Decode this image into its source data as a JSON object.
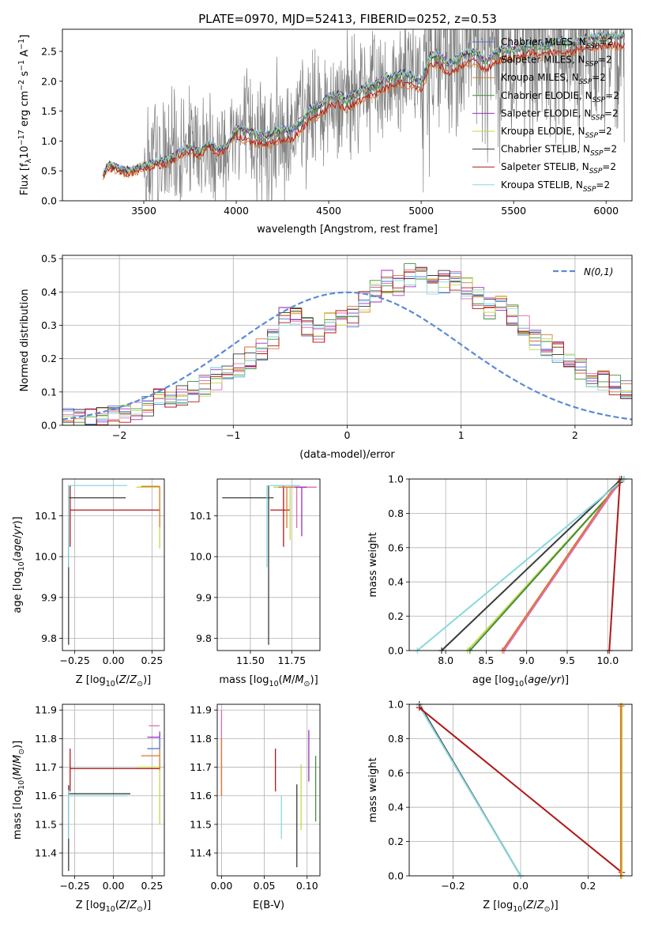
{
  "figure": {
    "title": "PLATE=0970, MJD=52413, FIBERID=0252, z=0.53"
  },
  "colors": {
    "chabrier_miles": "#4c72d8",
    "salpeter_miles": "#e06ab0",
    "kroupa_miles": "#d97a2c",
    "chabrier_elodie": "#3f8f3f",
    "salpeter_elodie": "#9b2fbf",
    "kroupa_elodie": "#c9d64a",
    "chabrier_stelib": "#3a3a3a",
    "salpeter_stelib": "#b01818",
    "kroupa_stelib": "#88d8e0",
    "data": "#808080",
    "normal": "#5b8ad6"
  },
  "chart_data": [
    {
      "id": "spectrum",
      "type": "line",
      "xlabel": "wavelength [Angstrom, rest frame]",
      "ylabel": "Flux [f_λ 10^-17 erg cm^-2 s^-1 A^-1]",
      "xlim": [
        3060,
        6140
      ],
      "ylim": [
        0,
        2.87
      ],
      "xticks": [
        3500,
        4000,
        4500,
        5000,
        5500,
        6000
      ],
      "yticks": [
        0.0,
        0.5,
        1.0,
        1.5,
        2.0,
        2.5
      ],
      "legend_position": "top-right",
      "legend": [
        {
          "label": "Chabrier MILES, N",
          "sub": "SSP",
          "suffix": "=2",
          "color": "#4c72d8"
        },
        {
          "label": "Salpeter MILES, N",
          "sub": "SSP",
          "suffix": "=2",
          "color": "#e06ab0"
        },
        {
          "label": "Kroupa MILES, N",
          "sub": "SSP",
          "suffix": "=2",
          "color": "#d97a2c"
        },
        {
          "label": "Chabrier ELODIE, N",
          "sub": "SSP",
          "suffix": "=2",
          "color": "#3f8f3f"
        },
        {
          "label": "Salpeter ELODIE, N",
          "sub": "SSP",
          "suffix": "=2",
          "color": "#9b2fbf"
        },
        {
          "label": "Kroupa ELODIE, N",
          "sub": "SSP",
          "suffix": "=2",
          "color": "#c9d64a"
        },
        {
          "label": "Chabrier STELIB, N",
          "sub": "SSP",
          "suffix": "=2",
          "color": "#3a3a3a"
        },
        {
          "label": "Salpeter STELIB, N",
          "sub": "SSP",
          "suffix": "=2",
          "color": "#b01818"
        },
        {
          "label": "Kroupa STELIB, N",
          "sub": "SSP",
          "suffix": "=2",
          "color": "#88d8e0"
        }
      ],
      "model_curve": {
        "x": [
          3280,
          3310,
          3350,
          3400,
          3450,
          3500,
          3550,
          3600,
          3650,
          3700,
          3750,
          3800,
          3850,
          3900,
          3950,
          4000,
          4050,
          4100,
          4150,
          4200,
          4250,
          4300,
          4350,
          4400,
          4450,
          4500,
          4550,
          4600,
          4650,
          4700,
          4750,
          4800,
          4850,
          4900,
          4950,
          5000,
          5050,
          5100,
          5150,
          5200,
          5250,
          5300,
          5350,
          5400,
          5450,
          5500,
          5550,
          5600,
          5650,
          5700,
          5750,
          5800,
          5850,
          5900,
          5950,
          6000
        ],
        "y": [
          0.42,
          0.6,
          0.55,
          0.5,
          0.52,
          0.58,
          0.62,
          0.65,
          0.7,
          0.82,
          0.88,
          0.8,
          0.95,
          0.85,
          0.9,
          1.2,
          1.15,
          1.1,
          1.05,
          1.1,
          1.15,
          1.15,
          1.3,
          1.5,
          1.55,
          1.7,
          1.75,
          1.65,
          1.78,
          1.85,
          1.9,
          2.0,
          2.05,
          2.1,
          2.05,
          1.95,
          2.4,
          2.4,
          2.25,
          2.35,
          2.45,
          2.45,
          2.3,
          2.45,
          2.5,
          2.5,
          2.55,
          2.6,
          2.55,
          2.6,
          2.65,
          2.6,
          2.65,
          2.7,
          2.7,
          2.72
        ]
      },
      "offsets": [
        0.02,
        0.03,
        -0.15,
        0.0,
        0.05,
        0.04,
        0.05,
        -0.12,
        0.06
      ],
      "data_curve": {
        "x": [
          3280,
          3310,
          3350,
          3400,
          3450,
          3500,
          3550,
          3600,
          3650,
          3700,
          3750,
          3800,
          3850,
          3900,
          3950,
          4000,
          4050,
          4100,
          4150,
          4200,
          4250,
          4300,
          4350,
          4400,
          4450,
          4500,
          4550,
          4600,
          4650,
          4700,
          4750,
          4800,
          4850,
          4900,
          4950,
          5000,
          5050,
          5100,
          5150,
          5200,
          5250,
          5300,
          5350,
          5400,
          5450,
          5500,
          5550,
          5600,
          5650,
          5700,
          5750,
          5800,
          5850,
          5900,
          5950,
          6000
        ],
        "y": [
          0.45,
          0.62,
          0.55,
          0.5,
          0.52,
          0.6,
          0.62,
          0.66,
          0.72,
          0.8,
          0.9,
          0.82,
          0.95,
          0.86,
          0.92,
          1.2,
          1.16,
          1.1,
          1.05,
          1.1,
          1.15,
          1.18,
          1.3,
          1.5,
          1.55,
          1.7,
          1.72,
          1.66,
          1.78,
          1.85,
          1.9,
          2.0,
          2.05,
          2.1,
          2.05,
          1.95,
          2.38,
          2.4,
          2.25,
          2.35,
          2.45,
          2.45,
          2.3,
          2.45,
          2.5,
          2.5,
          2.55,
          2.6,
          2.55,
          2.6,
          2.65,
          2.6,
          2.65,
          2.7,
          2.7,
          2.72
        ]
      }
    },
    {
      "id": "residuals",
      "type": "histogram",
      "xlabel": "(data-model)/error",
      "ylabel": "Normed distribution",
      "xlim": [
        -2.5,
        2.5
      ],
      "ylim": [
        0,
        0.51
      ],
      "xticks": [
        -2,
        -1,
        0,
        1,
        2
      ],
      "yticks": [
        0.0,
        0.1,
        0.2,
        0.3,
        0.4,
        0.5
      ],
      "legend_position": "top-right",
      "normal_label": "N(0,1)",
      "bins": {
        "start": -2.5,
        "width": 0.1
      },
      "base_values": [
        0.02,
        0.02,
        0.025,
        0.02,
        0.03,
        0.04,
        0.045,
        0.06,
        0.075,
        0.08,
        0.09,
        0.1,
        0.12,
        0.14,
        0.17,
        0.18,
        0.2,
        0.23,
        0.26,
        0.32,
        0.33,
        0.3,
        0.27,
        0.31,
        0.32,
        0.33,
        0.37,
        0.4,
        0.43,
        0.42,
        0.45,
        0.47,
        0.42,
        0.43,
        0.44,
        0.41,
        0.38,
        0.35,
        0.36,
        0.33,
        0.3,
        0.26,
        0.24,
        0.22,
        0.2,
        0.17,
        0.15,
        0.14,
        0.12,
        0.1
      ]
    },
    {
      "id": "age_vs_Z",
      "type": "errorbar",
      "xlabel": "Z [log10(Z/Z☉)]",
      "ylabel": "age [log10(age/yr)]",
      "xlim": [
        -0.33,
        0.33
      ],
      "ylim": [
        9.77,
        10.19
      ],
      "xticks": [
        -0.25,
        0.0,
        0.25
      ],
      "yticks": [
        9.8,
        9.9,
        10.0,
        10.1
      ],
      "points": [
        {
          "x": -0.28,
          "y": 10.114,
          "xerr": [
            0.0,
            0.58
          ],
          "yerr": [
            0.09,
            0.06
          ],
          "color": "#b01818"
        },
        {
          "x": -0.29,
          "y": 10.144,
          "xerr": [
            0.0,
            0.37
          ],
          "yerr": [
            0.36,
            0.03
          ],
          "color": "#3a3a3a"
        },
        {
          "x": -0.29,
          "y": 10.174,
          "xerr": [
            0.0,
            0.38
          ],
          "yerr": [
            0.2,
            0.0
          ],
          "color": "#88d8e0"
        },
        {
          "x": 0.3,
          "y": 10.17,
          "xerr": [
            0.15,
            0.0
          ],
          "yerr": [
            0.15,
            0.0
          ],
          "color": "#c9d64a"
        },
        {
          "x": 0.3,
          "y": 10.172,
          "xerr": [
            0.12,
            0.0
          ],
          "yerr": [
            0.1,
            0.0
          ],
          "color": "#d97a2c"
        }
      ]
    },
    {
      "id": "age_vs_mass",
      "type": "errorbar",
      "xlabel": "mass [log10(M/M☉)]",
      "ylabel": "",
      "xlim": [
        11.3,
        11.92
      ],
      "ylim": [
        9.77,
        10.19
      ],
      "xticks": [
        11.5,
        11.75
      ],
      "yticks": [
        9.8,
        9.9,
        10.0,
        10.1
      ],
      "points": [
        {
          "x": 11.61,
          "y": 10.144,
          "xerr": [
            0.28,
            0.03
          ],
          "yerr": [
            0.36,
            0.03
          ],
          "color": "#3a3a3a"
        },
        {
          "x": 11.7,
          "y": 10.114,
          "xerr": [
            0.08,
            0.04
          ],
          "yerr": [
            0.09,
            0.06
          ],
          "color": "#b01818"
        },
        {
          "x": 11.6,
          "y": 10.174,
          "xerr": [
            0.0,
            0.2
          ],
          "yerr": [
            0.2,
            0.0
          ],
          "color": "#88d8e0"
        },
        {
          "x": 11.74,
          "y": 10.17,
          "xerr": [
            0.1,
            0.06
          ],
          "yerr": [
            0.13,
            0.0
          ],
          "color": "#c9d64a"
        },
        {
          "x": 11.78,
          "y": 10.17,
          "xerr": [
            0.05,
            0.12
          ],
          "yerr": [
            0.1,
            0.0
          ],
          "color": "#e06ab0"
        },
        {
          "x": 11.81,
          "y": 10.17,
          "xerr": [
            0.05,
            0.03
          ],
          "yerr": [
            0.12,
            0.0
          ],
          "color": "#9b2fbf"
        },
        {
          "x": 11.72,
          "y": 10.17,
          "xerr": [
            0.05,
            0.05
          ],
          "yerr": [
            0.1,
            0.0
          ],
          "color": "#d97a2c"
        }
      ]
    },
    {
      "id": "weight_vs_age",
      "type": "line",
      "xlabel": "age [log10(age/yr)]",
      "ylabel": "mass weight",
      "xlim": [
        7.55,
        10.3
      ],
      "ylim": [
        0,
        1
      ],
      "xticks": [
        8.0,
        8.5,
        9.0,
        9.5,
        10.0
      ],
      "yticks": [
        0.0,
        0.2,
        0.4,
        0.6,
        0.8,
        1.0
      ],
      "series": [
        {
          "x": [
            8.27,
            10.2
          ],
          "y": [
            0.0,
            1.0
          ],
          "color": "#c9d64a"
        },
        {
          "x": [
            8.3,
            10.2
          ],
          "y": [
            0.0,
            1.0
          ],
          "color": "#3f8f3f"
        },
        {
          "x": [
            8.7,
            10.15
          ],
          "y": [
            0.0,
            1.0
          ],
          "color": "#d97a2c"
        },
        {
          "x": [
            8.72,
            10.17
          ],
          "y": [
            0.0,
            1.0
          ],
          "color": "#e06ab0"
        },
        {
          "x": [
            7.95,
            10.17
          ],
          "y": [
            0.0,
            1.0
          ],
          "color": "#3a3a3a"
        },
        {
          "x": [
            7.65,
            10.2
          ],
          "y": [
            0.0,
            1.0
          ],
          "color": "#88d8e0"
        },
        {
          "x": [
            10.02,
            10.15
          ],
          "y": [
            0.0,
            0.98
          ],
          "color": "#b01818"
        }
      ]
    },
    {
      "id": "mass_vs_Z",
      "type": "errorbar",
      "xlabel": "Z [log10(Z/Z☉)]",
      "ylabel": "mass [log10(M/M☉)]",
      "xlim": [
        -0.33,
        0.33
      ],
      "ylim": [
        11.32,
        11.92
      ],
      "xticks": [
        -0.25,
        0.0,
        0.25
      ],
      "yticks": [
        11.4,
        11.5,
        11.6,
        11.7,
        11.8,
        11.9
      ],
      "points": [
        {
          "x": -0.29,
          "y": 11.607,
          "xerr": [
            0.0,
            0.4
          ],
          "yerr": [
            0.27,
            0.03
          ],
          "color": "#3a3a3a"
        },
        {
          "x": -0.28,
          "y": 11.695,
          "xerr": [
            0.0,
            0.58
          ],
          "yerr": [
            0.08,
            0.07
          ],
          "color": "#b01818"
        },
        {
          "x": -0.29,
          "y": 11.6,
          "xerr": [
            0.0,
            0.38
          ],
          "yerr": [
            0.15,
            0.02
          ],
          "color": "#88d8e0"
        },
        {
          "x": 0.3,
          "y": 11.7,
          "xerr": [
            0.15,
            0.0
          ],
          "yerr": [
            0.2,
            0.03
          ],
          "color": "#c9d64a"
        },
        {
          "x": 0.3,
          "y": 11.74,
          "xerr": [
            0.12,
            0.0
          ],
          "yerr": [
            0.05,
            0.06
          ],
          "color": "#d97a2c"
        },
        {
          "x": 0.3,
          "y": 11.765,
          "xerr": [
            0.08,
            0.0
          ],
          "yerr": [
            0.0,
            0.05
          ],
          "color": "#4c72d8"
        },
        {
          "x": 0.3,
          "y": 11.805,
          "xerr": [
            0.08,
            0.0
          ],
          "yerr": [
            0.0,
            0.02
          ],
          "color": "#9b2fbf"
        },
        {
          "x": 0.3,
          "y": 11.845,
          "xerr": [
            0.07,
            0.0
          ],
          "yerr": [
            0.0,
            0.0
          ],
          "color": "#e06ab0"
        }
      ]
    },
    {
      "id": "mass_vs_ebv",
      "type": "errorbar",
      "xlabel": "E(B-V)",
      "ylabel": "",
      "xlim": [
        -0.005,
        0.115
      ],
      "ylim": [
        11.32,
        11.92
      ],
      "xticks": [
        0.0,
        0.05,
        0.1
      ],
      "yticks": [
        11.4,
        11.5,
        11.6,
        11.7,
        11.8,
        11.9
      ],
      "points": [
        {
          "x": 0.0,
          "y": 11.76,
          "yerr": [
            0.16,
            0.14
          ],
          "color": "#e06ab0"
        },
        {
          "x": 0.0,
          "y": 11.7,
          "yerr": [
            0.1,
            0.1
          ],
          "color": "#d97a2c"
        },
        {
          "x": 0.063,
          "y": 11.695,
          "yerr": [
            0.08,
            0.07
          ],
          "color": "#b01818"
        },
        {
          "x": 0.07,
          "y": 11.53,
          "yerr": [
            0.08,
            0.07
          ],
          "color": "#88d8e0"
        },
        {
          "x": 0.088,
          "y": 11.52,
          "yerr": [
            0.17,
            0.12
          ],
          "color": "#3a3a3a"
        },
        {
          "x": 0.093,
          "y": 11.58,
          "yerr": [
            0.1,
            0.13
          ],
          "color": "#c9d64a"
        },
        {
          "x": 0.102,
          "y": 11.73,
          "yerr": [
            0.08,
            0.1
          ],
          "color": "#9b2fbf"
        },
        {
          "x": 0.11,
          "y": 11.62,
          "yerr": [
            0.11,
            0.12
          ],
          "color": "#3f8f3f"
        }
      ]
    },
    {
      "id": "weight_vs_Z",
      "type": "line",
      "xlabel": "Z [log10(Z/Z☉)]",
      "ylabel": "mass weight",
      "xlim": [
        -0.33,
        0.33
      ],
      "ylim": [
        0,
        1
      ],
      "xticks": [
        -0.2,
        0.0,
        0.2
      ],
      "yticks": [
        0.0,
        0.2,
        0.4,
        0.6,
        0.8,
        1.0
      ],
      "series": [
        {
          "x": [
            -0.3,
            0.0
          ],
          "y": [
            1.0,
            0.0
          ],
          "color": "#3a3a3a"
        },
        {
          "x": [
            -0.3,
            0.0
          ],
          "y": [
            0.99,
            0.0
          ],
          "color": "#88d8e0"
        },
        {
          "x": [
            -0.3,
            0.3
          ],
          "y": [
            0.98,
            0.02
          ],
          "color": "#b01818"
        },
        {
          "x": [
            0.3,
            0.3
          ],
          "y": [
            0.0,
            0.99
          ],
          "color": "#c9d64a"
        },
        {
          "x": [
            0.297,
            0.297
          ],
          "y": [
            0.0,
            0.99
          ],
          "color": "#d97a2c"
        }
      ]
    }
  ]
}
